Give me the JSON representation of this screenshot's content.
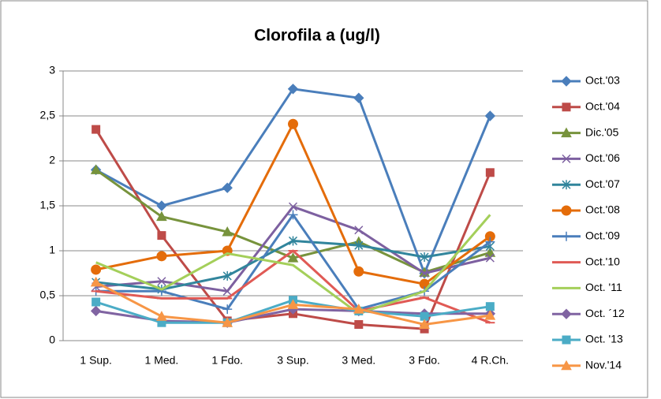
{
  "chart_data": {
    "type": "line",
    "title": "Clorofila a (ug/l)",
    "categories": [
      "1 Sup.",
      "1 Med.",
      "1 Fdo.",
      "3 Sup.",
      "3 Med.",
      "3 Fdo.",
      "4 R.Ch."
    ],
    "ylim": [
      0,
      3
    ],
    "yticks": [
      0,
      {
        "value": 0.5,
        "label": "0,5"
      },
      1,
      {
        "value": 1.5,
        "label": "1,5"
      },
      2,
      {
        "value": 2.5,
        "label": "2,5"
      },
      3
    ],
    "grid": true,
    "legend": "right",
    "series": [
      {
        "name": "Oct.'03",
        "color": "#4a7ebb",
        "marker": "diamond",
        "values": [
          1.9,
          1.5,
          1.7,
          2.8,
          2.7,
          0.75,
          2.5
        ]
      },
      {
        "name": "Oct.'04",
        "color": "#be4b48",
        "marker": "square",
        "values": [
          2.35,
          1.17,
          0.22,
          0.3,
          0.18,
          0.13,
          1.87
        ]
      },
      {
        "name": "Dic.'05",
        "color": "#77933c",
        "marker": "triangle",
        "values": [
          1.9,
          1.38,
          1.21,
          0.92,
          1.1,
          0.76,
          0.98
        ]
      },
      {
        "name": "Oct.'06",
        "color": "#7d60a0",
        "marker": "x",
        "values": [
          0.6,
          0.66,
          0.55,
          1.49,
          1.23,
          0.75,
          0.92
        ]
      },
      {
        "name": "Oct.'07",
        "color": "#31859c",
        "marker": "star",
        "values": [
          0.65,
          0.57,
          0.72,
          1.11,
          1.06,
          0.93,
          1.05
        ]
      },
      {
        "name": "Oct.'08",
        "color": "#e46c0a",
        "marker": "circle",
        "values": [
          0.79,
          0.94,
          1.0,
          2.41,
          0.77,
          0.63,
          1.16
        ]
      },
      {
        "name": "Oct.'09",
        "color": "#4a7ebb",
        "marker": "plus",
        "values": [
          0.55,
          0.55,
          0.35,
          1.4,
          0.35,
          0.55,
          1.1
        ]
      },
      {
        "name": "Oct.'10",
        "color": "#e05a55",
        "marker": "dash",
        "values": [
          0.55,
          0.47,
          0.47,
          1.0,
          0.33,
          0.48,
          0.2
        ]
      },
      {
        "name": "Oct. '11",
        "color": "#a4cf5a",
        "marker": "none",
        "values": [
          0.87,
          0.57,
          0.97,
          0.84,
          0.3,
          0.55,
          1.4
        ]
      },
      {
        "name": "Oct. ´12",
        "color": "#8064a2",
        "marker": "diamond",
        "values": [
          0.33,
          0.22,
          0.2,
          0.35,
          0.33,
          0.3,
          0.3
        ]
      },
      {
        "name": "Oct. '13",
        "color": "#4bacc6",
        "marker": "square",
        "values": [
          0.43,
          0.2,
          0.2,
          0.45,
          0.33,
          0.27,
          0.38
        ]
      },
      {
        "name": "Nov.'14",
        "color": "#f79646",
        "marker": "triangle",
        "values": [
          0.65,
          0.27,
          0.2,
          0.4,
          0.35,
          0.18,
          0.28
        ]
      }
    ]
  }
}
